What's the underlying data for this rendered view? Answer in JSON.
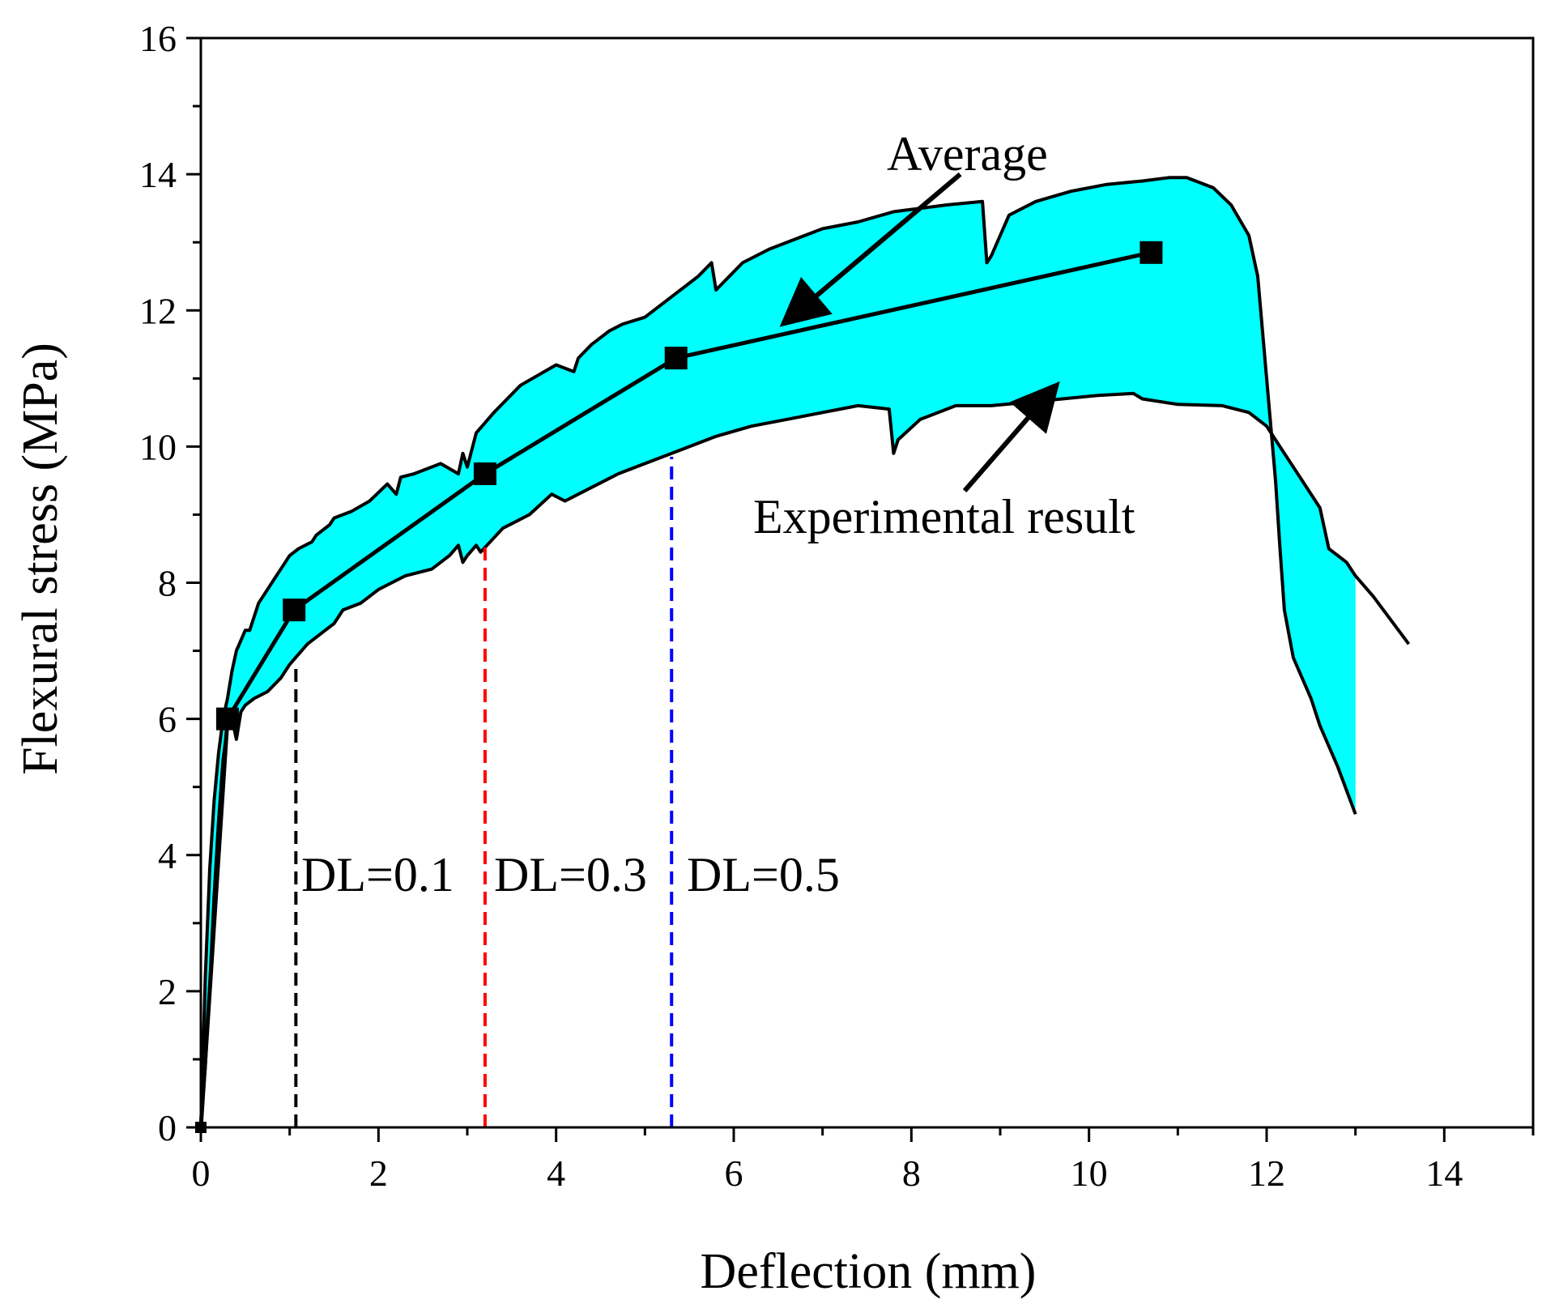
{
  "chart_data": {
    "type": "area",
    "xlabel": "Deflection (mm)",
    "ylabel": "Flexural stress (MPa)",
    "xlim": [
      0,
      15
    ],
    "ylim": [
      0,
      16
    ],
    "xticks": [
      "0",
      "2",
      "4",
      "6",
      "8",
      "10",
      "12",
      "14"
    ],
    "yticks": [
      "0",
      "2",
      "4",
      "6",
      "8",
      "10",
      "12",
      "14",
      "16"
    ],
    "colors": {
      "band": "#00ffff",
      "line": "#000000",
      "dl_0_1": "#000000",
      "dl_0_3": "#ff0000",
      "dl_0_5": "#0000ff"
    },
    "series": [
      {
        "name": "Experimental result (upper envelope)",
        "x": [
          0,
          0.05,
          0.1,
          0.15,
          0.2,
          0.25,
          0.3,
          0.35,
          0.4,
          0.5,
          0.55,
          0.65,
          0.7,
          0.8,
          0.9,
          1.0,
          1.1,
          1.25,
          1.3,
          1.45,
          1.5,
          1.7,
          1.9,
          2.1,
          2.2,
          2.25,
          2.4,
          2.6,
          2.7,
          2.9,
          2.95,
          3.0,
          3.1,
          3.3,
          3.6,
          4.0,
          4.2,
          4.25,
          4.4,
          4.6,
          4.75,
          5.0,
          5.3,
          5.5,
          5.6,
          5.75,
          5.8,
          6.1,
          6.4,
          6.8,
          7.0,
          7.4,
          7.8,
          8.4,
          8.8,
          8.85,
          8.9,
          9.1,
          9.4,
          9.8,
          10.2,
          10.6,
          10.9,
          11.1,
          11.4,
          11.6,
          11.8,
          11.9,
          12.0,
          12.1,
          12.15,
          12.2,
          12.3,
          12.5,
          12.6,
          12.8,
          13.0
        ],
        "y": [
          0,
          2.2,
          3.8,
          4.8,
          5.5,
          6.0,
          6.3,
          6.7,
          7.0,
          7.3,
          7.3,
          7.7,
          7.8,
          8.0,
          8.2,
          8.4,
          8.5,
          8.6,
          8.7,
          8.85,
          8.95,
          9.05,
          9.2,
          9.45,
          9.3,
          9.55,
          9.6,
          9.7,
          9.75,
          9.6,
          9.9,
          9.7,
          10.2,
          10.5,
          10.9,
          11.2,
          11.1,
          11.3,
          11.5,
          11.7,
          11.8,
          11.9,
          12.2,
          12.4,
          12.5,
          12.7,
          12.3,
          12.7,
          12.9,
          13.1,
          13.2,
          13.3,
          13.45,
          13.55,
          13.6,
          12.7,
          12.8,
          13.4,
          13.6,
          13.75,
          13.85,
          13.9,
          13.95,
          13.95,
          13.8,
          13.55,
          13.1,
          12.5,
          11.0,
          9.5,
          8.5,
          7.6,
          6.9,
          6.3,
          5.9,
          5.3,
          4.6
        ]
      },
      {
        "name": "Experimental result (lower envelope)",
        "x": [
          0,
          0.05,
          0.1,
          0.15,
          0.2,
          0.25,
          0.3,
          0.35,
          0.4,
          0.45,
          0.5,
          0.6,
          0.75,
          0.9,
          1.0,
          1.2,
          1.4,
          1.5,
          1.6,
          1.8,
          2.0,
          2.3,
          2.6,
          2.8,
          2.9,
          2.95,
          3.0,
          3.1,
          3.15,
          3.4,
          3.7,
          3.95,
          4.1,
          4.4,
          4.7,
          5.0,
          5.4,
          5.8,
          6.2,
          6.6,
          7.0,
          7.4,
          7.75,
          7.8,
          7.85,
          8.1,
          8.5,
          8.9,
          9.3,
          9.7,
          10.1,
          10.5,
          10.6,
          11.0,
          11.5,
          11.8,
          12.0,
          12.2,
          12.4,
          12.6,
          12.7,
          12.9,
          13.0
        ],
        "y": [
          0,
          0.9,
          2.1,
          3.4,
          4.5,
          5.4,
          5.9,
          6.0,
          5.7,
          6.1,
          6.2,
          6.3,
          6.4,
          6.6,
          6.8,
          7.1,
          7.3,
          7.4,
          7.6,
          7.7,
          7.9,
          8.1,
          8.2,
          8.4,
          8.55,
          8.3,
          8.4,
          8.55,
          8.45,
          8.8,
          9.0,
          9.3,
          9.2,
          9.4,
          9.6,
          9.75,
          9.95,
          10.15,
          10.3,
          10.4,
          10.5,
          10.6,
          10.55,
          9.9,
          10.1,
          10.4,
          10.6,
          10.6,
          10.65,
          10.7,
          10.75,
          10.78,
          10.7,
          10.62,
          10.6,
          10.5,
          10.3,
          9.9,
          9.5,
          9.1,
          8.5,
          8.3,
          8.1
        ]
      },
      {
        "name": "Experimental result (tail)",
        "x": [
          13.0,
          13.2,
          13.4,
          13.6
        ],
        "y": [
          8.1,
          7.8,
          7.45,
          7.1
        ]
      },
      {
        "name": "Average",
        "markers": true,
        "x": [
          0,
          0.3,
          1.05,
          3.2,
          5.35,
          10.7
        ],
        "y": [
          0,
          6.0,
          7.6,
          9.6,
          11.3,
          12.85
        ]
      }
    ],
    "vlines": [
      {
        "label": "DL=0.1",
        "x": 1.07,
        "ymax": 6.75,
        "color": "#000000"
      },
      {
        "label": "DL=0.3",
        "x": 3.2,
        "ymax": 8.55,
        "color": "#ff0000"
      },
      {
        "label": "DL=0.5",
        "x": 5.3,
        "ymax": 9.85,
        "color": "#0000ff"
      }
    ],
    "annotations": [
      {
        "label": "Average",
        "text_at": [
          8.7,
          14.2
        ],
        "arrow_from": [
          8.55,
          14.0
        ],
        "arrow_to": [
          6.6,
          11.85
        ]
      },
      {
        "label": "Experimental result",
        "text_at": [
          8.6,
          8.7
        ],
        "arrow_from": [
          8.6,
          9.35
        ],
        "arrow_to": [
          9.6,
          10.85
        ]
      }
    ]
  }
}
